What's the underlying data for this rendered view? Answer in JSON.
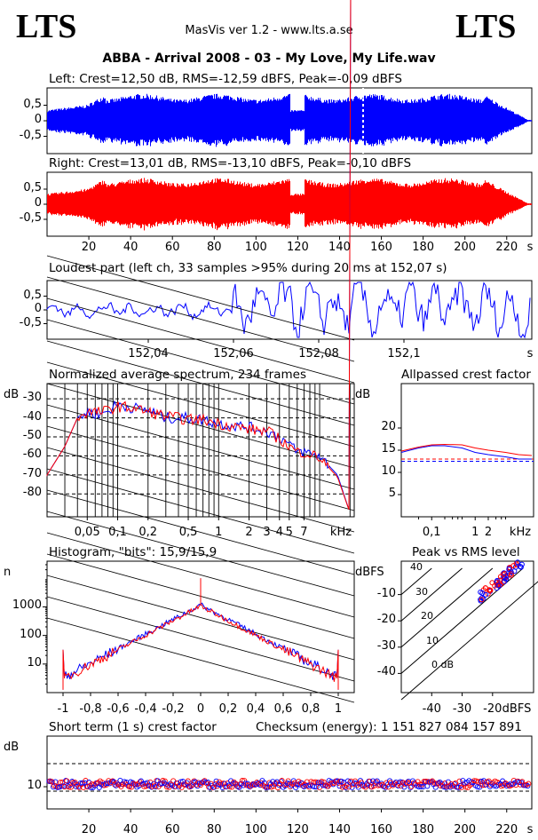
{
  "header": {
    "logo_left": "LTS",
    "logo_right": "LTS",
    "version": "MasVis ver 1.2 - www.lts.a.se",
    "track": "ABBA - Arrival 2008 - 03 - My Love, My Life.wav"
  },
  "colors": {
    "left": "#0000ff",
    "right": "#ff0000"
  },
  "panels": {
    "left_wave": "Left: Crest=12,50 dB, RMS=-12,59 dBFS, Peak=-0,09 dBFS",
    "right_wave": "Right: Crest=13,01 dB, RMS=-13,10 dBFS, Peak=-0,10 dBFS",
    "loudest": "Loudest part (left  ch, 33 samples >95% during 20 ms at 152,07 s)",
    "spectrum": "Normalized average spectrum, 234 frames",
    "allpass": "Allpassed crest factor",
    "histogram": "Histogram, \"bits\": 15,9/15,9",
    "peak_rms": "Peak vs RMS level",
    "short_crest": "Short term (1 s) crest factor",
    "checksum": "Checksum (energy):  1 151 827 084 157 891"
  },
  "axes": {
    "wave_y": [
      "0,5",
      "0",
      "-0,5"
    ],
    "time_x": [
      "20",
      "40",
      "60",
      "80",
      "100",
      "120",
      "140",
      "160",
      "180",
      "200",
      "220",
      "s"
    ],
    "loud_x": [
      "152,04",
      "152,06",
      "152,08",
      "152,1",
      "s"
    ],
    "spec_unit": "dB",
    "spec_y": [
      "-30",
      "-40",
      "-50",
      "-60",
      "-70",
      "-80"
    ],
    "spec_x": [
      "0,05",
      "0,1",
      "0,2",
      "0,5",
      "1",
      "2",
      "3",
      "4",
      "5",
      "7",
      "kHz"
    ],
    "crest_unit": "dB",
    "crest_y": [
      "20",
      "15",
      "10",
      "5"
    ],
    "crest_x": [
      "0,1",
      "1",
      "2",
      "kHz"
    ],
    "hist_unit": "n",
    "hist_y": [
      "1000",
      "100",
      "10"
    ],
    "hist_x": [
      "-1",
      "-0,8",
      "-0,6",
      "-0,4",
      "-0,2",
      "0",
      "0,2",
      "0,4",
      "0,6",
      "0,8",
      "1"
    ],
    "pr_unit": "dBFS",
    "pr_y": [
      "-10",
      "-20",
      "-30",
      "-40"
    ],
    "pr_x": [
      "-40",
      "-30",
      "-20",
      "dBFS"
    ],
    "pr_diag": [
      "40",
      "30",
      "20",
      "10",
      "0 dB"
    ],
    "st_unit": "dB",
    "st_y": "10"
  },
  "chart_data": [
    {
      "type": "area",
      "name": "left waveform",
      "xlim": [
        0,
        232
      ],
      "ylim": [
        -1,
        1
      ],
      "marker_time_s": 152.07
    },
    {
      "type": "area",
      "name": "right waveform",
      "xlim": [
        0,
        232
      ],
      "ylim": [
        -1,
        1
      ]
    },
    {
      "type": "line",
      "name": "loudest part",
      "xlim": [
        152.025,
        152.115
      ],
      "ylim": [
        -1,
        1
      ]
    },
    {
      "type": "line",
      "name": "spectrum",
      "x_khz": [
        0.02,
        0.03,
        0.04,
        0.05,
        0.07,
        0.1,
        0.15,
        0.2,
        0.3,
        0.5,
        0.7,
        1,
        2,
        3,
        4,
        5,
        6,
        7,
        10,
        15,
        20
      ],
      "left_db": [
        -70,
        -55,
        -40,
        -37,
        -38,
        -33,
        -35,
        -36,
        -40,
        -40,
        -41,
        -43,
        -45,
        -47,
        -50,
        -54,
        -58,
        -58,
        -60,
        -70,
        -90
      ],
      "right_db": [
        -70,
        -55,
        -40,
        -37,
        -37,
        -34,
        -35,
        -37,
        -39,
        -41,
        -41,
        -43,
        -46,
        -47,
        -51,
        -55,
        -58,
        -58,
        -61,
        -71,
        -90
      ]
    },
    {
      "type": "line",
      "name": "allpassed crest",
      "x_khz": [
        0.02,
        0.05,
        0.1,
        0.2,
        0.5,
        1,
        2,
        5,
        10,
        20
      ],
      "left_db": [
        14.5,
        15.5,
        16,
        16,
        15.5,
        14.5,
        14,
        13.5,
        13,
        13
      ],
      "right_db": [
        14.8,
        15.7,
        16.2,
        16.3,
        16.2,
        15.5,
        15,
        14.5,
        14,
        13.8
      ],
      "left_ref_db": 12.5,
      "right_ref_db": 13.0
    },
    {
      "type": "line",
      "name": "histogram",
      "xlim": [
        -1,
        1
      ],
      "ylog": true
    },
    {
      "type": "scatter",
      "name": "peak vs rms",
      "xlim": [
        -50,
        -10
      ],
      "ylim": [
        -50,
        0
      ]
    },
    {
      "type": "scatter",
      "name": "short term crest",
      "xlim": [
        0,
        232
      ],
      "ylevel_db": 11
    }
  ]
}
